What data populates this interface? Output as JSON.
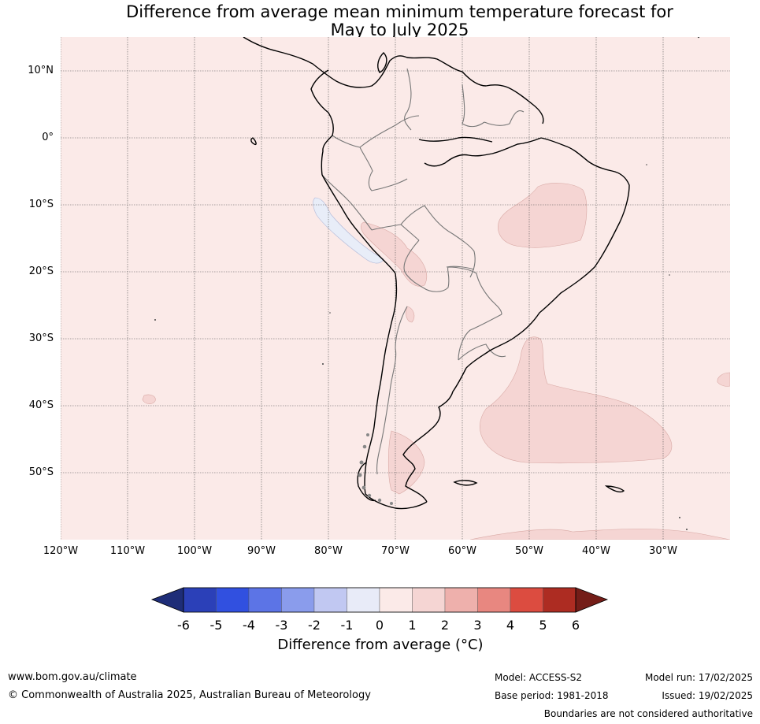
{
  "title": {
    "line1": "Difference from average mean minimum temperature forecast for",
    "line2": "May to July 2025"
  },
  "map": {
    "lat_labels": [
      "10°N",
      "0°",
      "10°S",
      "20°S",
      "30°S",
      "40°S",
      "50°S"
    ],
    "lon_labels": [
      "120°W",
      "110°W",
      "100°W",
      "90°W",
      "80°W",
      "70°W",
      "60°W",
      "50°W",
      "40°W",
      "30°W"
    ],
    "background_color": "#fbeae8",
    "anomaly_regions": [
      {
        "name": "Central Brazil",
        "category": "1 to 2",
        "color": "#f5d5d3"
      },
      {
        "name": "South Atlantic",
        "category": "1 to 2",
        "color": "#f5d5d3"
      },
      {
        "name": "Bolivia",
        "category": "1 to 2",
        "color": "#f5d5d3"
      },
      {
        "name": "Patagonia",
        "category": "1 to 2",
        "color": "#f5d5d3"
      },
      {
        "name": "Peru coast",
        "category": "-1 to 0",
        "color": "#e8edf8"
      }
    ]
  },
  "colorbar": {
    "ticks": [
      "-6",
      "-5",
      "-4",
      "-3",
      "-2",
      "-1",
      "0",
      "1",
      "2",
      "3",
      "4",
      "5",
      "6"
    ],
    "colors": [
      "#1e2d78",
      "#2b40b8",
      "#3150e0",
      "#5c74e6",
      "#8a9cec",
      "#c1c8f2",
      "#e8ebf8",
      "#fbeae8",
      "#f5d5d3",
      "#eeb0ac",
      "#e88780",
      "#dc4c40",
      "#ad2c22",
      "#741d18"
    ],
    "label": "Difference from average (°C)"
  },
  "footer": {
    "website": "www.bom.gov.au/climate",
    "copyright": "© Commonwealth of Australia 2025, Australian Bureau of Meteorology",
    "model": "Model: ACCESS-S2",
    "base_period": "Base period: 1981-2018",
    "model_run": "Model run: 17/02/2025",
    "issued": "Issued: 19/02/2025",
    "disclaimer": "Boundaries are not considered authoritative"
  }
}
